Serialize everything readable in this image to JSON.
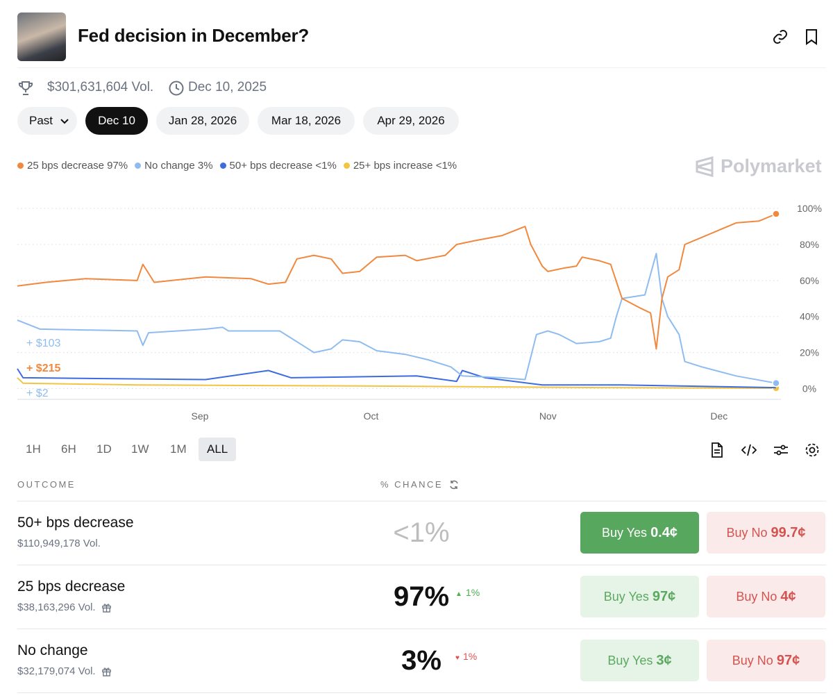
{
  "header": {
    "title": "Fed decision in December?",
    "volume": "$301,631,604 Vol.",
    "date": "Dec 10, 2025"
  },
  "tabs": {
    "items": [
      "Past",
      "Dec 10",
      "Jan 28, 2026",
      "Mar 18, 2026",
      "Apr 29, 2026"
    ],
    "active": 1
  },
  "brand": "Polymarket",
  "chart_data": {
    "type": "line",
    "xlim": [
      212,
      345
    ],
    "xticks": [
      {
        "value": 244,
        "label": "Sep"
      },
      {
        "value": 274,
        "label": "Oct"
      },
      {
        "value": 305,
        "label": "Nov"
      },
      {
        "value": 335,
        "label": "Dec"
      }
    ],
    "ylim": [
      -6,
      102
    ],
    "yticks": [
      {
        "value": 0,
        "label": "0%"
      },
      {
        "value": 20,
        "label": "20%"
      },
      {
        "value": 40,
        "label": "40%"
      },
      {
        "value": 60,
        "label": "60%"
      },
      {
        "value": 80,
        "label": "80%"
      },
      {
        "value": 100,
        "label": "100%"
      }
    ],
    "grid": true,
    "series": [
      {
        "name": "25 bps decrease",
        "legend_value": "97%",
        "color": "#f0883e",
        "end_dot": true,
        "x": [
          212,
          217,
          224,
          233,
          234,
          236,
          245,
          253,
          256,
          259,
          261,
          264,
          267,
          269,
          272,
          275,
          280,
          282,
          287,
          289,
          292,
          297,
          301,
          302,
          304,
          305,
          308,
          310,
          311,
          314,
          316,
          318,
          321,
          323,
          324,
          325,
          326,
          328,
          329,
          332,
          335,
          338,
          342,
          345
        ],
        "values": [
          57,
          59,
          61,
          60,
          69,
          59,
          62,
          61,
          58,
          59,
          72,
          74,
          72,
          64,
          65,
          73,
          74,
          71,
          74,
          80,
          82,
          85,
          90,
          80,
          68,
          65,
          67,
          68,
          73,
          71,
          69,
          50,
          45,
          42,
          22,
          50,
          62,
          66,
          80,
          84,
          88,
          92,
          93,
          97
        ]
      },
      {
        "name": "No change",
        "legend_value": "3%",
        "color": "#8fbcf0",
        "end_dot": true,
        "x": [
          212,
          216,
          233,
          234,
          235,
          245,
          248,
          249,
          258,
          260,
          262,
          264,
          267,
          269,
          272,
          275,
          280,
          284,
          288,
          290,
          297,
          301,
          303,
          305,
          307,
          310,
          314,
          316,
          317,
          318,
          322,
          324,
          325,
          326,
          328,
          329,
          332,
          338,
          345
        ],
        "values": [
          38,
          33,
          32,
          24,
          31,
          33,
          34,
          32,
          32,
          28,
          24,
          20,
          22,
          27,
          26,
          21,
          19,
          16,
          12,
          7,
          6,
          5,
          30,
          32,
          30,
          25,
          26,
          28,
          40,
          50,
          52,
          75,
          50,
          40,
          30,
          15,
          12,
          7,
          3
        ]
      },
      {
        "name": "50+ bps decrease",
        "legend_value": "<1%",
        "color": "#3d6be0",
        "end_dot": false,
        "x": [
          212,
          213,
          245,
          256,
          260,
          282,
          289,
          290,
          294,
          304,
          318,
          345
        ],
        "values": [
          11,
          6,
          5,
          10,
          6,
          7,
          4,
          10,
          6,
          2,
          2,
          0.5
        ]
      },
      {
        "name": "25+ bps increase",
        "legend_value": "<1%",
        "color": "#f2c440",
        "end_dot": true,
        "x": [
          212,
          213,
          233,
          270,
          314,
          345
        ],
        "values": [
          6,
          3,
          2,
          1.5,
          0.5,
          0.2
        ]
      }
    ],
    "annotations": [
      {
        "text": "+ $103",
        "color": "#8fbcf0"
      },
      {
        "text": "+ $215",
        "color": "#f0883e"
      },
      {
        "text": "+ $2",
        "color": "#8fbcf0"
      }
    ]
  },
  "ranges": {
    "items": [
      "1H",
      "6H",
      "1D",
      "1W",
      "1M",
      "ALL"
    ],
    "active": 5
  },
  "table": {
    "headers": [
      "OUTCOME",
      "% CHANCE"
    ],
    "rows": [
      {
        "name": "50+ bps decrease",
        "volume": "$110,949,178 Vol.",
        "chance": "<1%",
        "change": null,
        "yes": "Buy Yes",
        "yes_price": "0.4¢",
        "no": "Buy No",
        "no_price": "99.7¢",
        "reward": false
      },
      {
        "name": "25 bps decrease",
        "volume": "$38,163,296 Vol.",
        "chance": "97%",
        "change": "1%",
        "change_dir": "up",
        "yes": "Buy Yes",
        "yes_price": "97¢",
        "no": "Buy No",
        "no_price": "4¢",
        "reward": true
      },
      {
        "name": "No change",
        "volume": "$32,179,074 Vol.",
        "chance": "3%",
        "change": "1%",
        "change_dir": "down",
        "yes": "Buy Yes",
        "yes_price": "3¢",
        "no": "Buy No",
        "no_price": "97¢",
        "reward": true
      }
    ]
  }
}
